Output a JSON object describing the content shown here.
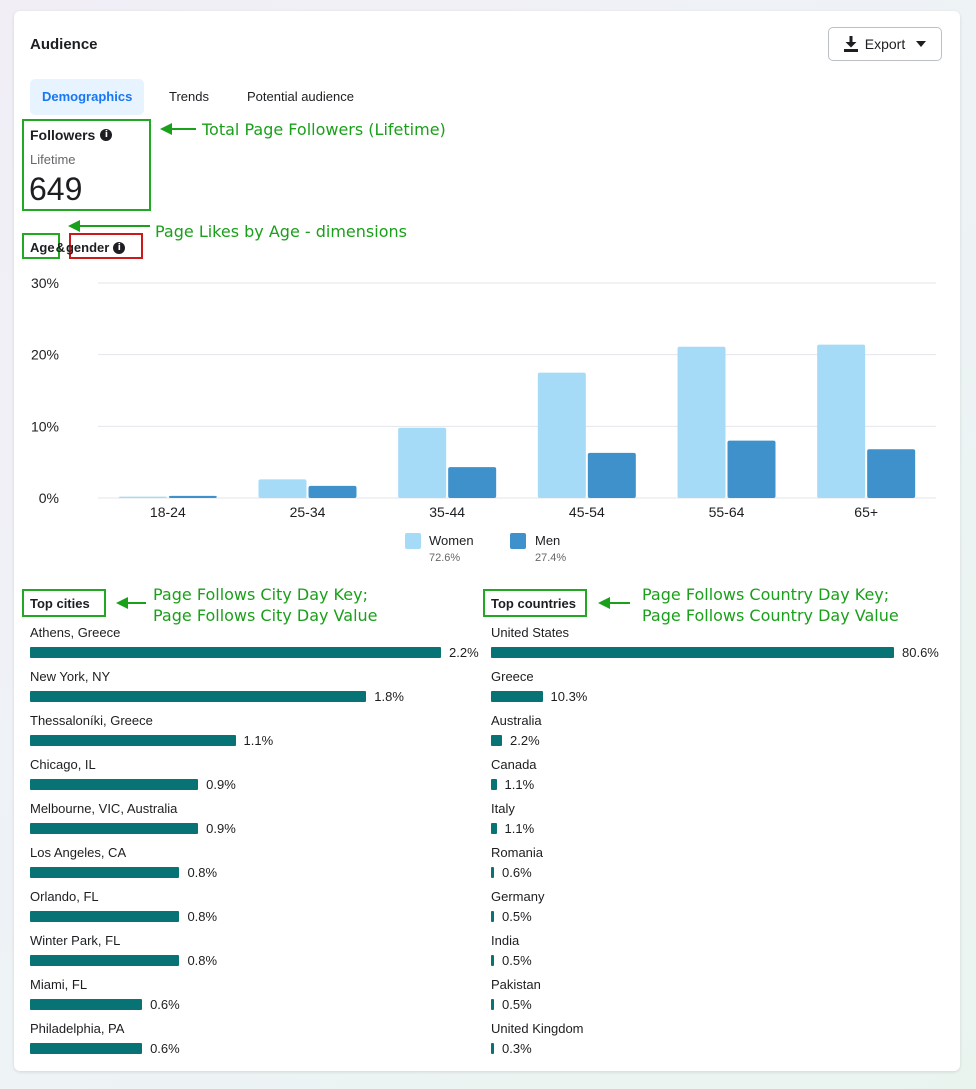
{
  "header": {
    "title": "Audience",
    "export_label": "Export"
  },
  "tabs": [
    {
      "label": "Demographics",
      "active": true
    },
    {
      "label": "Trends",
      "active": false
    },
    {
      "label": "Potential audience",
      "active": false
    }
  ],
  "followers": {
    "label": "Followers",
    "sublabel": "Lifetime",
    "value": "649"
  },
  "age_gender": {
    "age": "Age",
    "amp": "&",
    "gender": "gender"
  },
  "annotations": {
    "followers": "Total Page Followers (Lifetime)",
    "age": "Page Likes by Age - dimensions",
    "cities_line1": "Page Follows City Day Key;",
    "cities_line2": "Page Follows City Day Value",
    "countries_line1": "Page Follows Country Day Key;",
    "countries_line2": "Page Follows Country Day Value"
  },
  "colors": {
    "women": "#a6dbf7",
    "men": "#3f91cb",
    "bar": "#077374",
    "annotation": "#1aa01a"
  },
  "chart_data": {
    "type": "bar",
    "categories": [
      "18-24",
      "25-34",
      "35-44",
      "45-54",
      "55-64",
      "65+"
    ],
    "series": [
      {
        "name": "Women",
        "values": [
          0.2,
          2.6,
          9.8,
          17.5,
          21.1,
          21.4
        ]
      },
      {
        "name": "Men",
        "values": [
          0.3,
          1.7,
          4.3,
          6.3,
          8.0,
          6.8
        ]
      }
    ],
    "yticks": [
      "0%",
      "10%",
      "20%",
      "30%"
    ],
    "ylim": [
      0,
      30
    ],
    "legend": [
      {
        "label": "Women",
        "pct": "72.6%"
      },
      {
        "label": "Men",
        "pct": "27.4%"
      }
    ]
  },
  "top_cities": {
    "label": "Top cities",
    "rows": [
      {
        "name": "Athens, Greece",
        "value": "2.2%",
        "pct": 2.2
      },
      {
        "name": "New York, NY",
        "value": "1.8%",
        "pct": 1.8
      },
      {
        "name": "Thessaloníki, Greece",
        "value": "1.1%",
        "pct": 1.1
      },
      {
        "name": "Chicago, IL",
        "value": "0.9%",
        "pct": 0.9
      },
      {
        "name": "Melbourne, VIC, Australia",
        "value": "0.9%",
        "pct": 0.9
      },
      {
        "name": "Los Angeles, CA",
        "value": "0.8%",
        "pct": 0.8
      },
      {
        "name": "Orlando, FL",
        "value": "0.8%",
        "pct": 0.8
      },
      {
        "name": "Winter Park, FL",
        "value": "0.8%",
        "pct": 0.8
      },
      {
        "name": "Miami, FL",
        "value": "0.6%",
        "pct": 0.6
      },
      {
        "name": "Philadelphia, PA",
        "value": "0.6%",
        "pct": 0.6
      }
    ]
  },
  "top_countries": {
    "label": "Top countries",
    "rows": [
      {
        "name": "United States",
        "value": "80.6%",
        "pct": 80.6
      },
      {
        "name": "Greece",
        "value": "10.3%",
        "pct": 10.3
      },
      {
        "name": "Australia",
        "value": "2.2%",
        "pct": 2.2
      },
      {
        "name": "Canada",
        "value": "1.1%",
        "pct": 1.1
      },
      {
        "name": "Italy",
        "value": "1.1%",
        "pct": 1.1
      },
      {
        "name": "Romania",
        "value": "0.6%",
        "pct": 0.6
      },
      {
        "name": "Germany",
        "value": "0.5%",
        "pct": 0.5
      },
      {
        "name": "India",
        "value": "0.5%",
        "pct": 0.5
      },
      {
        "name": "Pakistan",
        "value": "0.5%",
        "pct": 0.5
      },
      {
        "name": "United Kingdom",
        "value": "0.3%",
        "pct": 0.3
      }
    ]
  }
}
